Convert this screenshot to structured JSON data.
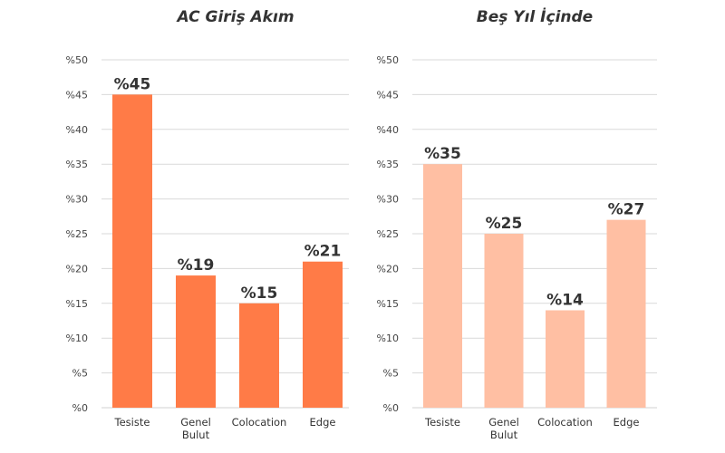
{
  "chart_data": [
    {
      "type": "bar",
      "title": "AC Giriş Akım",
      "categories": [
        [
          "Tesiste"
        ],
        [
          "Genel",
          "Bulut"
        ],
        [
          "Colocation"
        ],
        [
          "Edge"
        ]
      ],
      "values": [
        45,
        19,
        15,
        21
      ],
      "value_labels": [
        "%45",
        "%19",
        "%15",
        "%21"
      ],
      "ylim": [
        0,
        50
      ],
      "yticks": [
        0,
        5,
        10,
        15,
        20,
        25,
        30,
        35,
        40,
        45,
        50
      ],
      "ytick_labels": [
        "%0",
        "%5",
        "%10",
        "%15",
        "%20",
        "%25",
        "%30",
        "%35",
        "%40",
        "%45",
        "%50"
      ],
      "xlabel": "",
      "ylabel": "",
      "grid": true,
      "color": "#FF7B47"
    },
    {
      "type": "bar",
      "title": "Beş Yıl İçinde",
      "categories": [
        [
          "Tesiste"
        ],
        [
          "Genel",
          "Bulut"
        ],
        [
          "Colocation"
        ],
        [
          "Edge"
        ]
      ],
      "values": [
        35,
        25,
        14,
        27
      ],
      "value_labels": [
        "%35",
        "%25",
        "%14",
        "%27"
      ],
      "ylim": [
        0,
        50
      ],
      "yticks": [
        0,
        5,
        10,
        15,
        20,
        25,
        30,
        35,
        40,
        45,
        50
      ],
      "ytick_labels": [
        "%0",
        "%5",
        "%10",
        "%15",
        "%20",
        "%25",
        "%30",
        "%35",
        "%40",
        "%45",
        "%50"
      ],
      "xlabel": "",
      "ylabel": "",
      "grid": true,
      "color": "#FFBFA3"
    }
  ]
}
